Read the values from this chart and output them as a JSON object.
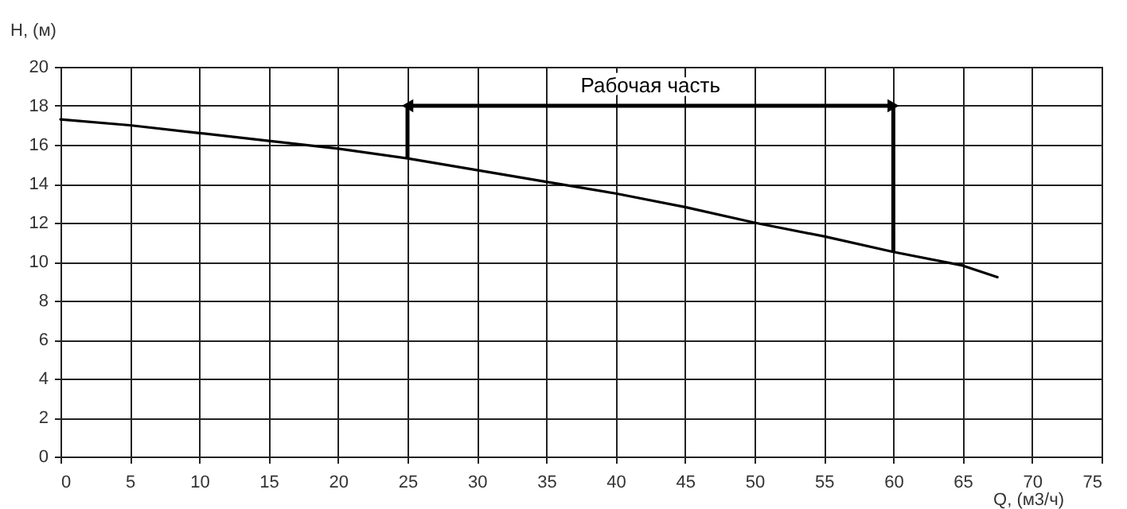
{
  "chart_data": {
    "type": "line",
    "xlabel": "Q, (м3/ч)",
    "ylabel": "H, (м)",
    "x": [
      0,
      5,
      10,
      15,
      20,
      25,
      30,
      35,
      40,
      45,
      50,
      55,
      60,
      65,
      67.5
    ],
    "series": [
      {
        "color": "#000000",
        "values": [
          17.3,
          17.0,
          16.6,
          16.2,
          15.8,
          15.3,
          14.7,
          14.1,
          13.5,
          12.8,
          12.0,
          11.3,
          10.5,
          9.8,
          9.2
        ]
      }
    ],
    "xlim": [
      0,
      75
    ],
    "xticks": [
      0,
      5,
      10,
      15,
      20,
      25,
      30,
      35,
      40,
      45,
      50,
      55,
      60,
      65,
      70,
      75
    ],
    "ylim": [
      0,
      20
    ],
    "yticks": [
      0,
      2,
      4,
      6,
      8,
      10,
      12,
      14,
      16,
      18,
      20
    ],
    "ref_lines": [
      {
        "axis": "x",
        "value": 25,
        "color": "#000000"
      },
      {
        "axis": "x",
        "value": 60,
        "color": "#000000"
      }
    ],
    "annotations": [
      "Рабочая часть"
    ],
    "grid": true,
    "marker": "none",
    "line_style": "solid"
  }
}
